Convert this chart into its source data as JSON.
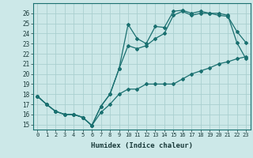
{
  "xlabel": "Humidex (Indice chaleur)",
  "bg_color": "#cce8e8",
  "grid_color": "#aacfcf",
  "line_color": "#1a7070",
  "xlim": [
    -0.5,
    23.5
  ],
  "ylim": [
    14.5,
    27.0
  ],
  "xticks": [
    0,
    1,
    2,
    3,
    4,
    5,
    6,
    7,
    8,
    9,
    10,
    11,
    12,
    13,
    14,
    15,
    16,
    17,
    18,
    19,
    20,
    21,
    22,
    23
  ],
  "yticks": [
    15,
    16,
    17,
    18,
    19,
    20,
    21,
    22,
    23,
    24,
    25,
    26
  ],
  "line1_x": [
    0,
    1,
    2,
    3,
    4,
    5,
    6,
    7,
    8,
    9,
    10,
    11,
    12,
    13,
    14,
    15,
    16,
    17,
    18,
    19,
    20,
    21,
    22,
    23
  ],
  "line1_y": [
    17.8,
    17.0,
    16.3,
    16.0,
    16.0,
    15.7,
    14.9,
    16.2,
    17.0,
    18.0,
    18.5,
    18.5,
    19.0,
    19.0,
    19.0,
    19.0,
    19.5,
    20.0,
    20.3,
    20.6,
    21.0,
    21.2,
    21.5,
    21.7
  ],
  "line2_x": [
    0,
    1,
    2,
    3,
    4,
    5,
    6,
    7,
    8,
    9,
    10,
    11,
    12,
    13,
    14,
    15,
    16,
    17,
    18,
    19,
    20,
    21,
    22,
    23
  ],
  "line2_y": [
    17.8,
    17.0,
    16.3,
    16.0,
    16.0,
    15.7,
    14.9,
    16.8,
    18.0,
    20.5,
    24.9,
    23.5,
    23.0,
    24.7,
    24.6,
    26.2,
    26.3,
    26.0,
    26.2,
    26.0,
    25.8,
    25.7,
    24.2,
    23.1
  ],
  "line3_x": [
    0,
    1,
    2,
    3,
    4,
    5,
    6,
    7,
    8,
    9,
    10,
    11,
    12,
    13,
    14,
    15,
    16,
    17,
    18,
    19,
    20,
    21,
    22,
    23
  ],
  "line3_y": [
    17.8,
    17.0,
    16.3,
    16.0,
    16.0,
    15.7,
    14.9,
    16.8,
    18.0,
    20.5,
    22.8,
    22.5,
    22.8,
    23.5,
    24.0,
    25.8,
    26.2,
    25.8,
    26.0,
    26.0,
    26.0,
    25.8,
    23.1,
    21.5
  ]
}
